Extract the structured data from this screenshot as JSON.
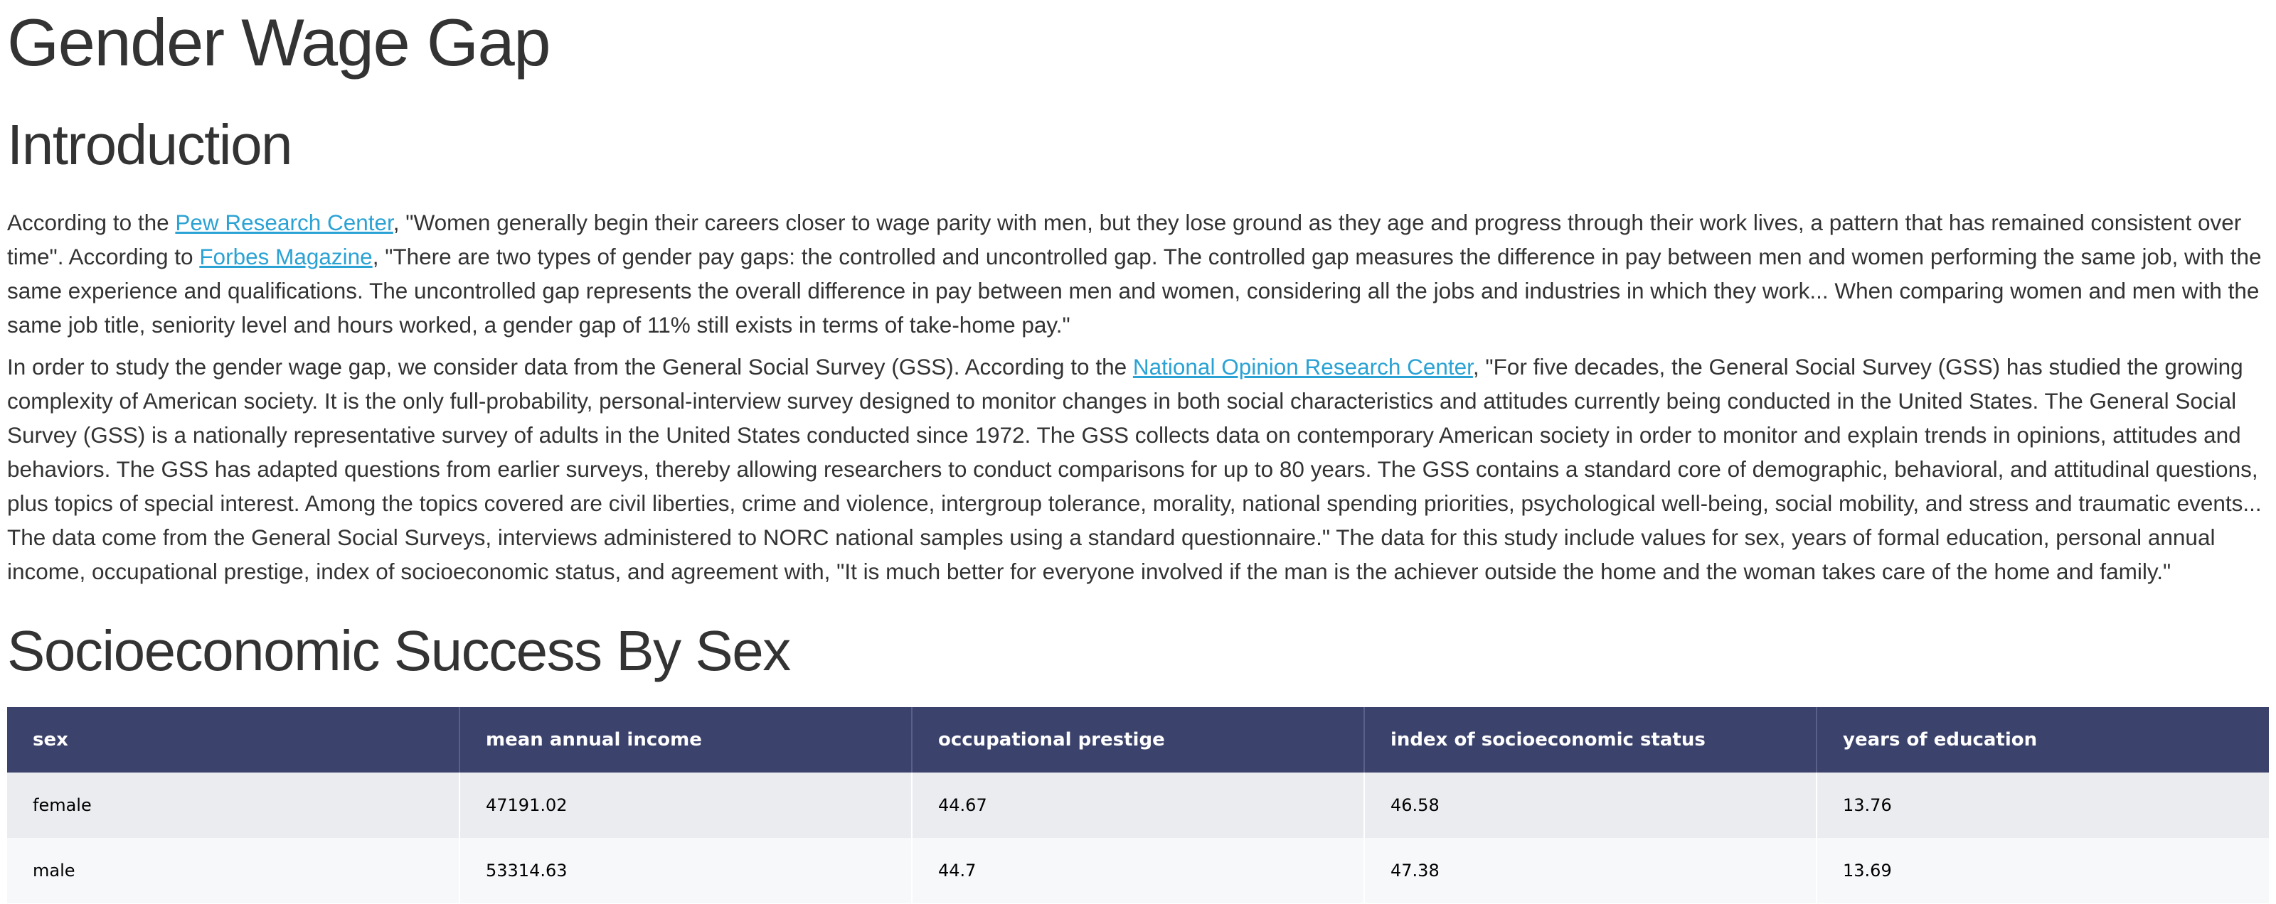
{
  "title": "Gender Wage Gap",
  "intro": {
    "heading": "Introduction",
    "p1": {
      "t1": "According to the ",
      "link1": "Pew Research Center",
      "t2": ", \"Women generally begin their careers closer to wage parity with men, but they lose ground as they age and progress through their work lives, a pattern that has remained consistent over time\". According to ",
      "link2": "Forbes Magazine",
      "t3": ", \"There are two types of gender pay gaps: the controlled and uncontrolled gap. The controlled gap measures the difference in pay between men and women performing the same job, with the same experience and qualifications. The uncontrolled gap represents the overall difference in pay between men and women, considering all the jobs and industries in which they work... When comparing women and men with the same job title, seniority level and hours worked, a gender gap of 11% still exists in terms of take-home pay.\""
    },
    "p2": {
      "t1": "In order to study the gender wage gap, we consider data from the General Social Survey (GSS). According to the ",
      "link1": "National Opinion Research Center",
      "t2": ", \"For five decades, the General Social Survey (GSS) has studied the growing complexity of American society. It is the only full-probability, personal-interview survey designed to monitor changes in both social characteristics and attitudes currently being conducted in the United States. The General Social Survey (GSS) is a nationally representative survey of adults in the United States conducted since 1972. The GSS collects data on contemporary American society in order to monitor and explain trends in opinions, attitudes and behaviors. The GSS has adapted questions from earlier surveys, thereby allowing researchers to conduct comparisons for up to 80 years. The GSS contains a standard core of demographic, behavioral, and attitudinal questions, plus topics of special interest. Among the topics covered are civil liberties, crime and violence, intergroup tolerance, morality, national spending priorities, psychological well-being, social mobility, and stress and traumatic events... The data come from the General Social Surveys, interviews administered to NORC national samples using a standard questionnaire.\" The data for this study include values for sex, years of formal education, personal annual income, occupational prestige, index of socioeconomic status, and agreement with, \"It is much better for everyone involved if the man is the achiever outside the home and the woman takes care of the home and family.\""
    }
  },
  "table_section": {
    "heading": "Socioeconomic Success By Sex",
    "columns": [
      "sex",
      "mean annual income",
      "occupational prestige",
      "index of socioeconomic status",
      "years of education"
    ],
    "rows": [
      [
        "female",
        "47191.02",
        "44.67",
        "46.58",
        "13.76"
      ],
      [
        "male",
        "53314.63",
        "44.7",
        "47.38",
        "13.69"
      ]
    ]
  },
  "colors": {
    "link": "#2aa2d4",
    "table_header": "#3b426b",
    "row_odd": "#ebecef",
    "row_even": "#f7f8fa"
  }
}
